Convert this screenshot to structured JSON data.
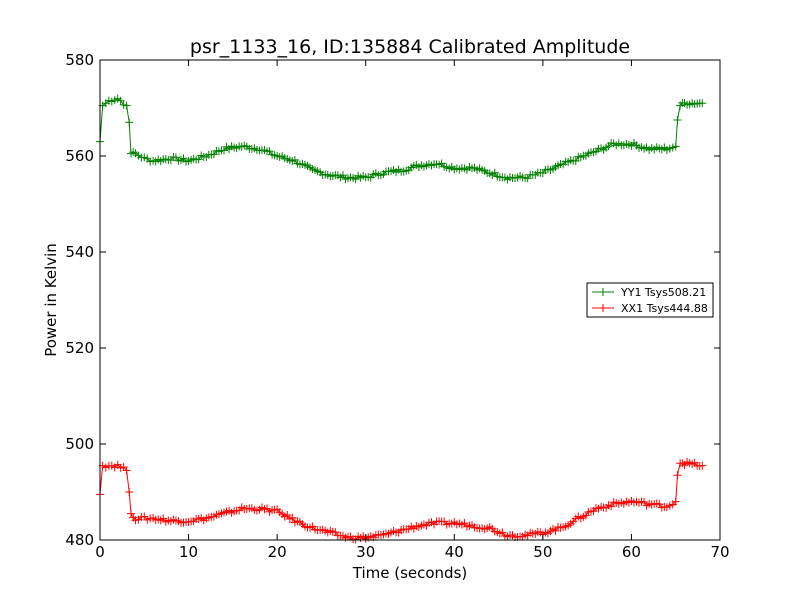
{
  "chart_data": {
    "type": "line",
    "title": "psr_1133_16, ID:135884 Calibrated Amplitude",
    "xlabel": "Time (seconds)",
    "ylabel": "Power in Kelvin",
    "xlim": [
      0,
      70
    ],
    "ylim": [
      480,
      580
    ],
    "xticks": [
      "0",
      "10",
      "20",
      "30",
      "40",
      "50",
      "60",
      "70"
    ],
    "yticks": [
      "480",
      "500",
      "520",
      "540",
      "560",
      "580"
    ],
    "grid": false,
    "legend_position": "center-right",
    "marker": "plus",
    "series": [
      {
        "name": "YY1 Tsys508.21",
        "color": "#008000",
        "points": [
          [
            0.0,
            563.0
          ],
          [
            0.3,
            570.5
          ],
          [
            1.0,
            571.5
          ],
          [
            2.0,
            572.0
          ],
          [
            3.0,
            570.5
          ],
          [
            3.3,
            567.0
          ],
          [
            3.5,
            560.5
          ],
          [
            4.0,
            560.5
          ],
          [
            5.0,
            559.5
          ],
          [
            6.0,
            559.0
          ],
          [
            8.0,
            559.5
          ],
          [
            10.0,
            559.0
          ],
          [
            12.0,
            560.0
          ],
          [
            14.0,
            561.5
          ],
          [
            16.0,
            562.0
          ],
          [
            18.0,
            561.5
          ],
          [
            20.0,
            560.0
          ],
          [
            22.0,
            559.0
          ],
          [
            24.0,
            557.0
          ],
          [
            26.0,
            556.0
          ],
          [
            28.0,
            555.5
          ],
          [
            30.0,
            555.5
          ],
          [
            32.0,
            556.5
          ],
          [
            34.0,
            557.0
          ],
          [
            36.0,
            558.0
          ],
          [
            38.0,
            558.5
          ],
          [
            40.0,
            557.5
          ],
          [
            42.0,
            557.5
          ],
          [
            44.0,
            556.5
          ],
          [
            46.0,
            555.5
          ],
          [
            48.0,
            555.5
          ],
          [
            50.0,
            556.5
          ],
          [
            52.0,
            558.0
          ],
          [
            54.0,
            559.5
          ],
          [
            56.0,
            561.0
          ],
          [
            58.0,
            562.5
          ],
          [
            60.0,
            562.5
          ],
          [
            62.0,
            561.5
          ],
          [
            64.0,
            561.5
          ],
          [
            65.0,
            562.0
          ],
          [
            65.2,
            567.5
          ],
          [
            65.5,
            570.5
          ],
          [
            66.0,
            571.0
          ],
          [
            68.0,
            571.0
          ]
        ]
      },
      {
        "name": "XX1 Tsys444.88",
        "color": "#ff0000",
        "points": [
          [
            0.0,
            489.5
          ],
          [
            0.3,
            495.5
          ],
          [
            1.0,
            495.5
          ],
          [
            2.0,
            495.5
          ],
          [
            3.0,
            494.5
          ],
          [
            3.3,
            490.0
          ],
          [
            3.5,
            485.5
          ],
          [
            4.0,
            484.5
          ],
          [
            5.0,
            484.5
          ],
          [
            6.0,
            484.5
          ],
          [
            8.0,
            484.0
          ],
          [
            10.0,
            484.0
          ],
          [
            12.0,
            484.5
          ],
          [
            14.0,
            485.5
          ],
          [
            16.0,
            486.5
          ],
          [
            18.0,
            486.5
          ],
          [
            20.0,
            486.0
          ],
          [
            22.0,
            484.0
          ],
          [
            24.0,
            482.5
          ],
          [
            26.0,
            481.5
          ],
          [
            28.0,
            480.5
          ],
          [
            30.0,
            480.5
          ],
          [
            32.0,
            481.0
          ],
          [
            34.0,
            482.0
          ],
          [
            36.0,
            483.0
          ],
          [
            38.0,
            483.5
          ],
          [
            40.0,
            483.5
          ],
          [
            42.0,
            483.0
          ],
          [
            44.0,
            482.5
          ],
          [
            46.0,
            481.0
          ],
          [
            48.0,
            481.0
          ],
          [
            50.0,
            481.5
          ],
          [
            52.0,
            482.5
          ],
          [
            54.0,
            484.5
          ],
          [
            56.0,
            486.5
          ],
          [
            58.0,
            487.5
          ],
          [
            60.0,
            488.0
          ],
          [
            62.0,
            487.5
          ],
          [
            64.0,
            487.0
          ],
          [
            65.0,
            488.0
          ],
          [
            65.2,
            493.5
          ],
          [
            65.5,
            496.0
          ],
          [
            66.0,
            496.0
          ],
          [
            68.0,
            495.5
          ]
        ]
      }
    ]
  }
}
